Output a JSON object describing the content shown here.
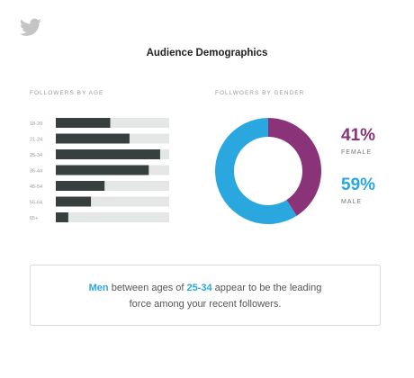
{
  "header": {
    "logo_icon": "twitter-bird-icon",
    "title": "Audience Demographics"
  },
  "chart_data": [
    {
      "type": "bar",
      "title": "FOLLOWERS BY AGE",
      "orientation": "horizontal",
      "categories": [
        "18-20",
        "21-24",
        "25-34",
        "35-44",
        "45-54",
        "55-64",
        "65+"
      ],
      "values": [
        48,
        65,
        92,
        82,
        43,
        31,
        11
      ],
      "xlim": [
        0,
        100
      ],
      "colors": {
        "bar": "#37403e",
        "track": "#e5e7e6"
      }
    },
    {
      "type": "pie",
      "style": "donut",
      "title": "FOLLWOERS BY GENDER",
      "slices": [
        {
          "label": "FEMALE",
          "value": 41,
          "display": "41%",
          "color": "#8a3378"
        },
        {
          "label": "MALE",
          "value": 59,
          "display": "59%",
          "color": "#2ba7e0"
        }
      ]
    }
  ],
  "insight": {
    "part1": "Men",
    "part2": " between ages of ",
    "part3": "25-34",
    "part4": " appear to be the leading",
    "line2": "force among your recent followers."
  }
}
